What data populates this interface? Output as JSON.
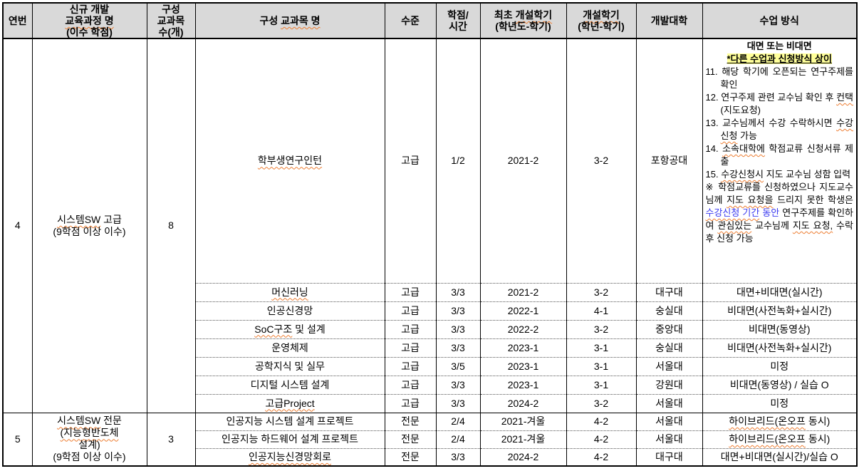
{
  "colors": {
    "header_bg": "#D9D9D9",
    "highlight": "#FFFF99",
    "blue": "#3A3AF0",
    "wavy": "#ED7D31",
    "border": "#000000"
  },
  "table": {
    "headers": {
      "no": [
        [
          "연번",
          ""
        ]
      ],
      "curriculum": [
        [
          "신규 개발",
          ""
        ],
        [
          "",
          "br"
        ],
        [
          "교육과정 명",
          "sp"
        ],
        [
          "",
          "br"
        ],
        [
          "(이수 학점)",
          ""
        ]
      ],
      "count": [
        [
          "구성",
          ""
        ],
        [
          "",
          "br"
        ],
        [
          "교과목",
          ""
        ],
        [
          "",
          "br"
        ],
        [
          "수(개)",
          ""
        ]
      ],
      "course": [
        [
          "구성 ",
          ""
        ],
        [
          "교과목 명",
          "sp"
        ]
      ],
      "level": [
        [
          "수준",
          ""
        ]
      ],
      "credit": [
        [
          "학점/",
          ""
        ],
        [
          "",
          "br"
        ],
        [
          "시간",
          ""
        ]
      ],
      "first": [
        [
          "최초 ",
          ""
        ],
        [
          "개설학기",
          "sp"
        ],
        [
          "",
          "br"
        ],
        [
          "(학년도-학기)",
          ""
        ]
      ],
      "semester": [
        [
          "개설학기",
          "sp"
        ],
        [
          "",
          "br"
        ],
        [
          "(학년-학기)",
          ""
        ]
      ],
      "univ": [
        [
          "개발대학",
          ""
        ]
      ],
      "method": [
        [
          "수업 방식",
          ""
        ]
      ]
    },
    "groups": [
      {
        "no": "4",
        "name": [
          [
            "시스템SW",
            "sp"
          ],
          [
            " 고급",
            ""
          ],
          [
            "",
            "br"
          ],
          [
            "(9학점 이상 이수)",
            ""
          ]
        ],
        "count": "8",
        "courses": [
          {
            "name": [
              [
                "학부생연구인턴",
                "sp"
              ]
            ],
            "level": "고급",
            "credit": "1/2",
            "first": "2021-2",
            "sem": "3-2",
            "univ": "포항공대"
          },
          {
            "name": [
              [
                "머신러닝",
                "sp"
              ]
            ],
            "level": "고급",
            "credit": "3/3",
            "first": "2021-2",
            "sem": "3-2",
            "univ": "대구대",
            "method": [
              [
                "대면+비대면(실시간)",
                ""
              ]
            ]
          },
          {
            "name": [
              [
                "인공신경망",
                ""
              ]
            ],
            "level": "고급",
            "credit": "3/3",
            "first": "2022-1",
            "sem": "4-1",
            "univ": "숭실대",
            "method": [
              [
                "비대면(사전녹화+실시간)",
                ""
              ]
            ]
          },
          {
            "name": [
              [
                "SoC구조",
                "sp"
              ],
              [
                " 및 설계",
                ""
              ]
            ],
            "level": "고급",
            "credit": "3/3",
            "first": "2022-2",
            "sem": "3-2",
            "univ": "중앙대",
            "method": [
              [
                "비대면(동영상)",
                ""
              ]
            ]
          },
          {
            "name": [
              [
                "운영체제",
                ""
              ]
            ],
            "level": "고급",
            "credit": "3/3",
            "first": "2023-1",
            "sem": "3-1",
            "univ": "숭실대",
            "method": [
              [
                "비대면(사전녹화+실시간)",
                ""
              ]
            ]
          },
          {
            "name": [
              [
                "공학지식 및 실무",
                ""
              ]
            ],
            "level": "고급",
            "credit": "3/5",
            "first": "2023-1",
            "sem": "3-1",
            "univ": "서울대",
            "method": [
              [
                "미정",
                ""
              ]
            ]
          },
          {
            "name": [
              [
                "디지털 시스템 설계",
                ""
              ]
            ],
            "level": "고급",
            "credit": "3/3",
            "first": "2023-1",
            "sem": "3-1",
            "univ": "강원대",
            "method": [
              [
                "비대면(동영상) / 실습 O",
                ""
              ]
            ]
          },
          {
            "name": [
              [
                "고급Project",
                "sp"
              ]
            ],
            "level": "고급",
            "credit": "3/3",
            "first": "2024-2",
            "sem": "3-2",
            "univ": "서울대",
            "method": [
              [
                "미정",
                ""
              ]
            ]
          }
        ]
      },
      {
        "no": "5",
        "name": [
          [
            "시스템SW",
            "sp"
          ],
          [
            " 전문",
            ""
          ],
          [
            "",
            "br"
          ],
          [
            "(지능형반도체",
            "sp"
          ],
          [
            "",
            "br"
          ],
          [
            "설계)",
            ""
          ],
          [
            "",
            "br"
          ],
          [
            "(9학점 이상 이수)",
            ""
          ]
        ],
        "count": "3",
        "courses": [
          {
            "name": [
              [
                "인공지능 시스템 설계 프로젝트",
                ""
              ]
            ],
            "level": "전문",
            "credit": "2/4",
            "first": "2021-겨울",
            "sem": "4-2",
            "univ": "서울대",
            "method": [
              [
                "하이브리드(온오프",
                "sp"
              ],
              [
                " 동시)",
                ""
              ]
            ]
          },
          {
            "name": [
              [
                "인공지능 하드웨어 설계 프로젝트",
                ""
              ]
            ],
            "level": "전문",
            "credit": "2/4",
            "first": "2021-겨울",
            "sem": "4-2",
            "univ": "서울대",
            "method": [
              [
                "하이브리드(온오프",
                "sp"
              ],
              [
                " 동시)",
                ""
              ]
            ]
          },
          {
            "name": [
              [
                "인공지능신경망회로",
                "sp"
              ]
            ],
            "level": "전문",
            "credit": "3/3",
            "first": "2024-2",
            "sem": "4-2",
            "univ": "대구대",
            "method": [
              [
                "대면+비대면(실시간)/실습 O",
                ""
              ]
            ]
          }
        ]
      }
    ],
    "long": {
      "title": [
        [
          "대면 또는 비대면",
          ""
        ]
      ],
      "subtitle": [
        [
          "*다른 수업과 신청방식 상이",
          "hl"
        ]
      ],
      "items": [
        [
          [
            "11. 해당 학기에 오픈되는 연구주제를 확인",
            ""
          ]
        ],
        [
          [
            "12. 연구주제 관련 교수님 확인 후 ",
            ""
          ],
          [
            "컨택",
            "sp"
          ],
          [
            "(지도요청)",
            ""
          ]
        ],
        [
          [
            "13. 교수님께서 수강 수락하시면 ",
            ""
          ],
          [
            "수강신청",
            "sp"
          ],
          [
            " 가능",
            ""
          ]
        ],
        [
          [
            "14. ",
            ""
          ],
          [
            "소속대학에",
            "sp"
          ],
          [
            " 학점교류 신청서류 제출",
            ""
          ]
        ],
        [
          [
            "15. ",
            ""
          ],
          [
            "수강신청시",
            "sp"
          ],
          [
            " 지도 교수님 성함 입력",
            ""
          ]
        ]
      ],
      "note": [
        [
          "※ 학점교류를 신청하였으나 지도교수님께 ",
          ""
        ],
        [
          "지도 요청을",
          "sp"
        ],
        [
          " 드리지 못한 학생은 ",
          ""
        ],
        [
          "수강신청 기간",
          "blue sp"
        ],
        [
          " 동안",
          "blue"
        ],
        [
          " 연구주제를 확인하여 ",
          ""
        ],
        [
          "관심있는",
          "sp"
        ],
        [
          " 교수님께 ",
          ""
        ],
        [
          "지도 요청,",
          "sp"
        ],
        [
          " 수락 후 신청 가능",
          ""
        ]
      ]
    }
  }
}
